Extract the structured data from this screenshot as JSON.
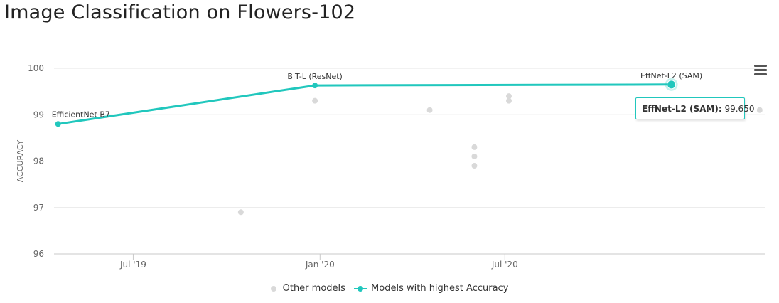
{
  "page": {
    "title": "Image Classification on Flowers-102"
  },
  "colors": {
    "accent": "#21c7bd",
    "other": "#d9d9d9",
    "grid": "#e6e6e6"
  },
  "icons": {
    "menu": "hamburger-menu-icon"
  },
  "tooltip": {
    "label": "EffNet-L2 (SAM):",
    "value": "99.650"
  },
  "chart_data": {
    "type": "scatter",
    "title": "Image Classification on Flowers-102",
    "ylabel": "ACCURACY",
    "xlabel": "",
    "ylim": [
      96,
      100
    ],
    "yticks": [
      96,
      97,
      98,
      99,
      100
    ],
    "xlim": [
      "2019-04-14",
      "2021-03-14"
    ],
    "xticks": [
      {
        "date": "2019-07-01",
        "label": "Jul '19"
      },
      {
        "date": "2020-01-01",
        "label": "Jan '20"
      },
      {
        "date": "2020-07-01",
        "label": "Jul '20"
      }
    ],
    "grid": true,
    "legend_position": "bottom",
    "series": [
      {
        "name": "Other models",
        "points": [
          {
            "x": "2019-10-15",
            "y": 96.9
          },
          {
            "x": "2019-12-27",
            "y": 99.3
          },
          {
            "x": "2020-04-18",
            "y": 99.1
          },
          {
            "x": "2020-06-01",
            "y": 98.3
          },
          {
            "x": "2020-06-01",
            "y": 98.1
          },
          {
            "x": "2020-06-01",
            "y": 97.9
          },
          {
            "x": "2020-07-05",
            "y": 99.4
          },
          {
            "x": "2020-07-05",
            "y": 99.3
          },
          {
            "x": "2021-03-09",
            "y": 99.1
          }
        ]
      },
      {
        "name": "Models with highest Accuracy",
        "points": [
          {
            "x": "2019-04-18",
            "y": 98.8,
            "label": "EfficientNet-B7"
          },
          {
            "x": "2019-12-27",
            "y": 99.63,
            "label": "BiT-L (ResNet)"
          },
          {
            "x": "2020-12-12",
            "y": 99.65,
            "label": "EffNet-L2 (SAM)"
          }
        ]
      }
    ]
  }
}
